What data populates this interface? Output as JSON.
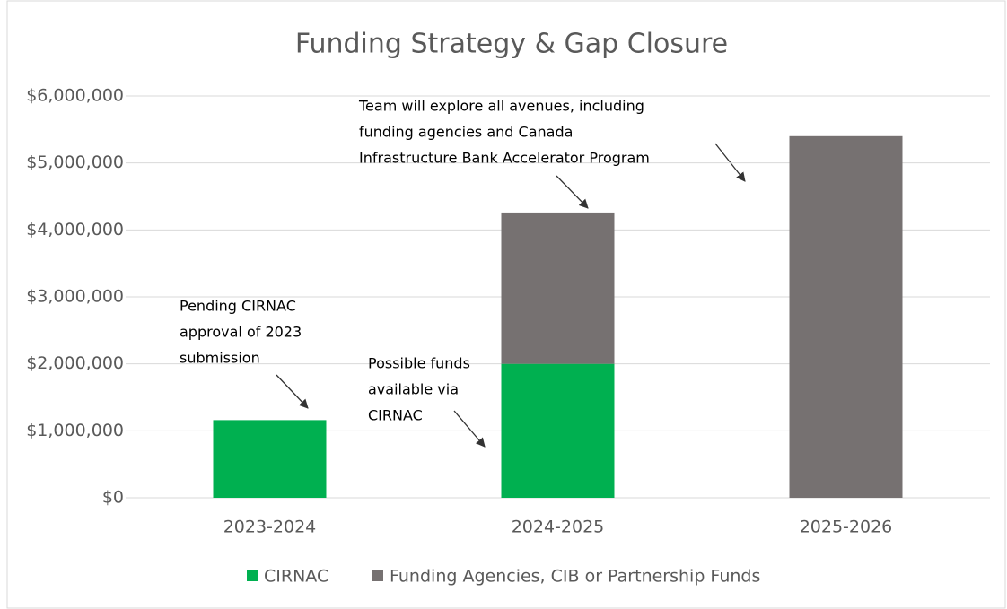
{
  "chart_data": {
    "type": "stacked_bar",
    "title": "Funding Strategy & Gap Closure",
    "categories": [
      "2023-2024",
      "2024-2025",
      "2025-2026"
    ],
    "series": [
      {
        "name": "CIRNAC",
        "color": "#00b050",
        "values": [
          1160000,
          2000000,
          0
        ]
      },
      {
        "name": "Funding Agencies, CIB or Partnership Funds",
        "color": "#767171",
        "values": [
          0,
          2260000,
          5400000
        ]
      }
    ],
    "ylim": [
      0,
      6000000
    ],
    "yticks": [
      {
        "value": 0,
        "label": "$0"
      },
      {
        "value": 1000000,
        "label": "$1,000,000"
      },
      {
        "value": 2000000,
        "label": "$2,000,000"
      },
      {
        "value": 3000000,
        "label": "$3,000,000"
      },
      {
        "value": 4000000,
        "label": "$4,000,000"
      },
      {
        "value": 5000000,
        "label": "$5,000,000"
      },
      {
        "value": 6000000,
        "label": "$6,000,000"
      }
    ],
    "grid": true,
    "legend": "bottom",
    "annotations": [
      [
        "Pending CIRNAC",
        "approval of 2023",
        "submission"
      ],
      [
        "Possible funds",
        "available via",
        "CIRNAC"
      ],
      [
        "Team will explore all avenues, including",
        "funding agencies and Canada",
        "Infrastructure Bank Accelerator Program"
      ]
    ]
  }
}
